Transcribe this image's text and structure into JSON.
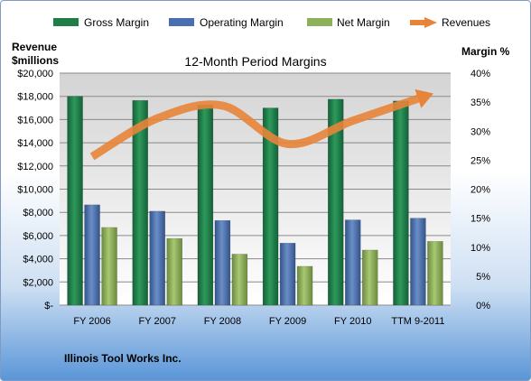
{
  "chart_data": {
    "type": "bar",
    "title": "12-Month Period Margins",
    "left_axis_label_line1": "Revenue",
    "left_axis_label_line2": "$millions",
    "right_axis_label": "Margin %",
    "company": "Illinois Tool Works Inc.",
    "categories": [
      "FY 2006",
      "FY 2007",
      "FY 2008",
      "FY 2009",
      "FY 2010",
      "TTM 9-2011"
    ],
    "left_axis": {
      "range": [
        0,
        20000
      ],
      "ticks": [
        "$-",
        "$2,000",
        "$4,000",
        "$6,000",
        "$8,000",
        "$10,000",
        "$12,000",
        "$14,000",
        "$16,000",
        "$18,000",
        "$20,000"
      ]
    },
    "right_axis": {
      "range": [
        0,
        40
      ],
      "ticks": [
        "0%",
        "5%",
        "10%",
        "15%",
        "20%",
        "25%",
        "30%",
        "35%",
        "40%"
      ]
    },
    "series": [
      {
        "name": "Gross Margin",
        "axis": "right",
        "unit": "%",
        "color": "#1e7e45",
        "values": [
          36.0,
          35.3,
          34.5,
          34.0,
          35.5,
          35.2
        ]
      },
      {
        "name": "Operating Margin",
        "axis": "right",
        "unit": "%",
        "color": "#4a6fb0",
        "values": [
          17.3,
          16.2,
          14.6,
          10.7,
          14.7,
          15.0
        ]
      },
      {
        "name": "Net Margin",
        "axis": "right",
        "unit": "%",
        "color": "#8db05a",
        "values": [
          13.4,
          11.5,
          8.8,
          6.7,
          9.5,
          11.0
        ]
      },
      {
        "name": "Revenues",
        "axis": "left",
        "unit": "$millions",
        "color": "#e8843a",
        "type": "line",
        "values": [
          12800,
          16100,
          17200,
          13900,
          15900,
          17800
        ]
      }
    ],
    "grid": true,
    "legend_position": "top"
  }
}
